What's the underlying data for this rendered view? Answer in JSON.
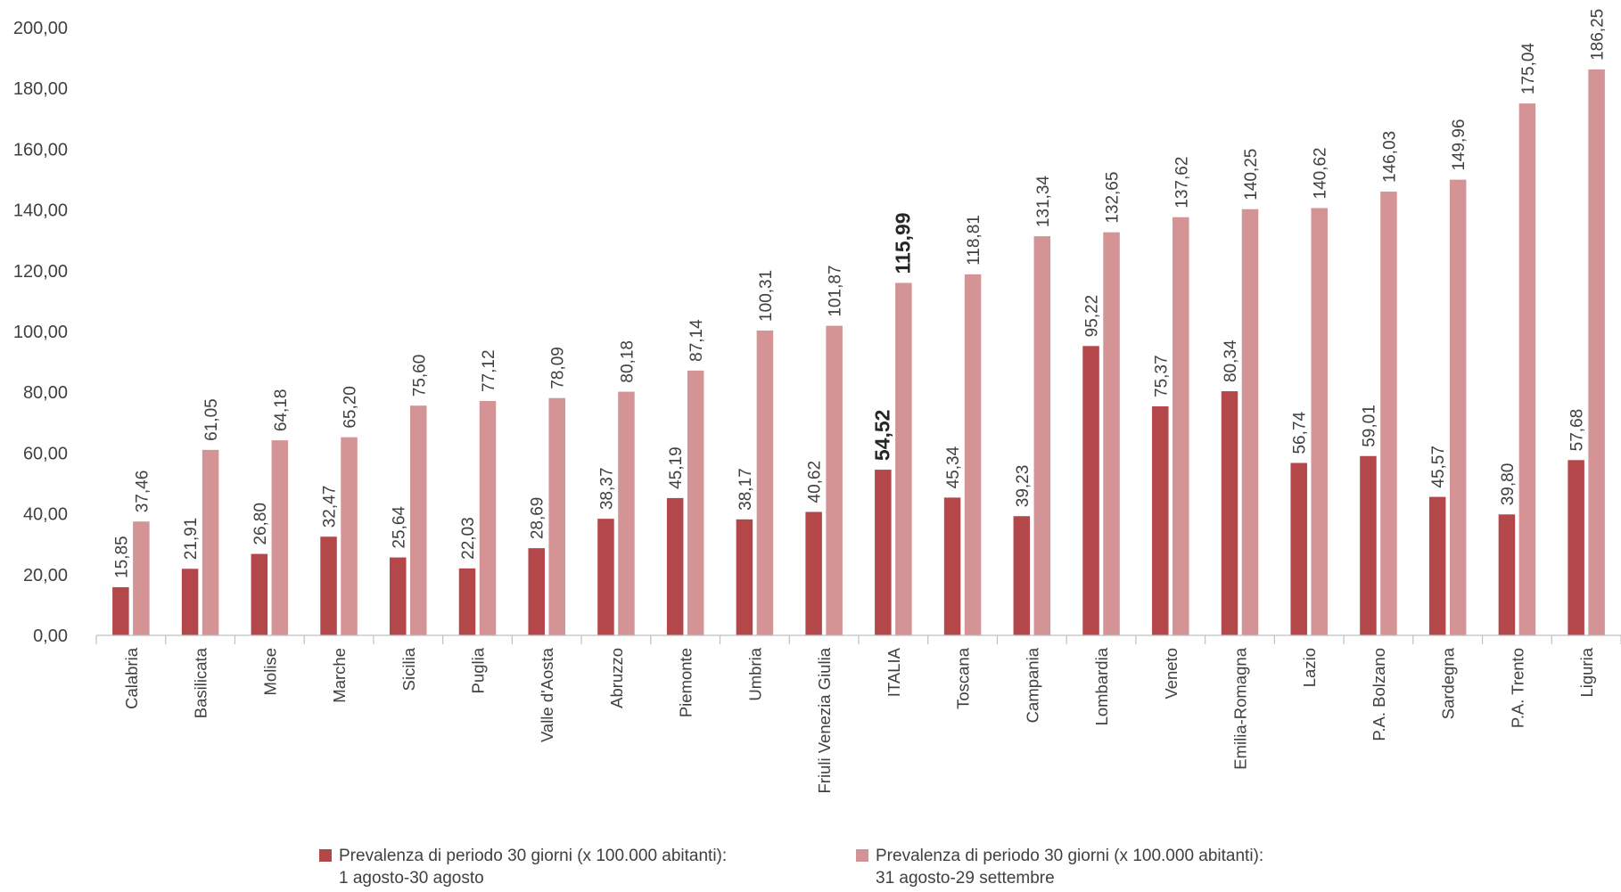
{
  "chart_data": {
    "type": "bar",
    "title": "",
    "xlabel": "",
    "ylabel": "",
    "ylim": [
      0,
      200
    ],
    "y_ticks": [
      "0,00",
      "20,00",
      "40,00",
      "60,00",
      "80,00",
      "100,00",
      "120,00",
      "140,00",
      "160,00",
      "180,00",
      "200,00"
    ],
    "grid": false,
    "legend_position": "bottom",
    "categories": [
      "Calabria",
      "Basilicata",
      "Molise",
      "Marche",
      "Sicilia",
      "Puglia",
      "Valle d'Aosta",
      "Abruzzo",
      "Piemonte",
      "Umbria",
      "Friuli Venezia Giulia",
      "ITALIA",
      "Toscana",
      "Campania",
      "Lombardia",
      "Veneto",
      "Emilia-Romagna",
      "Lazio",
      "P.A. Bolzano",
      "Sardegna",
      "P.A. Trento",
      "Liguria"
    ],
    "highlight_category": "ITALIA",
    "series": [
      {
        "legend_line1": "Prevalenza di periodo 30 giorni (x 100.000 abitanti):",
        "legend_line2": "1 agosto-30 agosto",
        "color": "#b4474a",
        "values": [
          15.85,
          21.91,
          26.8,
          32.47,
          25.64,
          22.03,
          28.69,
          38.37,
          45.19,
          38.17,
          40.62,
          54.52,
          45.34,
          39.23,
          95.22,
          75.37,
          80.34,
          56.74,
          59.01,
          45.57,
          39.8,
          57.68
        ],
        "labels": [
          "15,85",
          "21,91",
          "26,80",
          "32,47",
          "25,64",
          "22,03",
          "28,69",
          "38,37",
          "45,19",
          "38,17",
          "40,62",
          "54,52",
          "45,34",
          "39,23",
          "95,22",
          "75,37",
          "80,34",
          "56,74",
          "59,01",
          "45,57",
          "39,80",
          "57,68"
        ]
      },
      {
        "legend_line1": "Prevalenza di periodo 30 giorni (x 100.000 abitanti):",
        "legend_line2": "31 agosto-29 settembre",
        "color": "#d49394",
        "values": [
          37.46,
          61.05,
          64.18,
          65.2,
          75.6,
          77.12,
          78.09,
          80.18,
          87.14,
          100.31,
          101.87,
          115.99,
          118.81,
          131.34,
          132.65,
          137.62,
          140.25,
          140.62,
          146.03,
          149.96,
          175.04,
          186.25
        ],
        "labels": [
          "37,46",
          "61,05",
          "64,18",
          "65,20",
          "75,60",
          "77,12",
          "78,09",
          "80,18",
          "87,14",
          "100,31",
          "101,87",
          "115,99",
          "118,81",
          "131,34",
          "132,65",
          "137,62",
          "140,25",
          "140,62",
          "146,03",
          "149,96",
          "175,04",
          "186,25"
        ]
      }
    ]
  }
}
